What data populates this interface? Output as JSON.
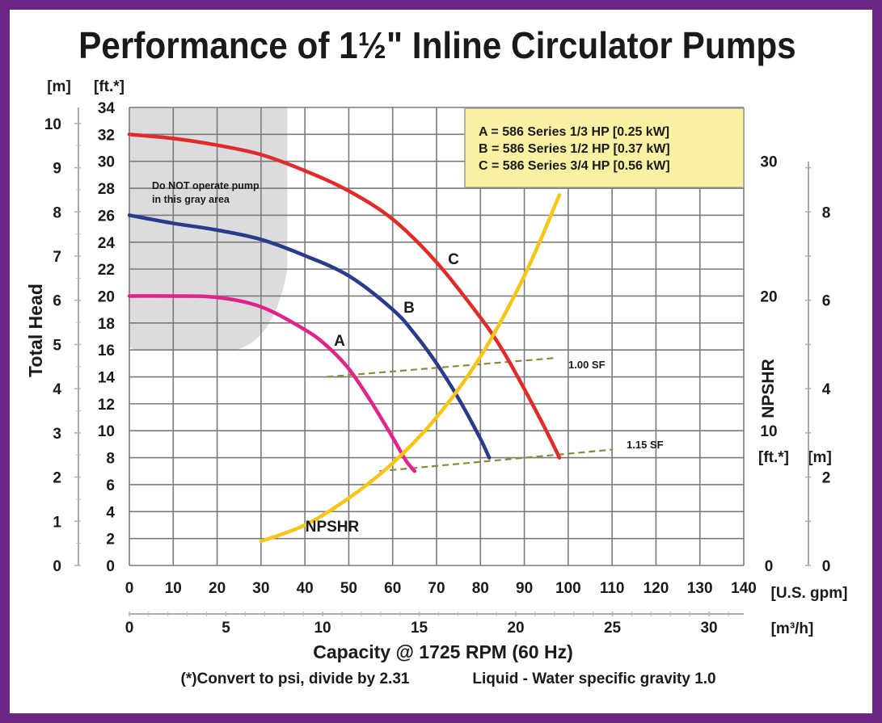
{
  "chart_data": {
    "type": "line",
    "title": "Performance of 1½\" Inline Circulator Pumps",
    "xlabel": "Capacity @ 1725 RPM (60 Hz)",
    "ylabel": "Total Head",
    "x_unit_primary": "[U.S. gpm]",
    "x_unit_secondary": "[m³/h]",
    "y_unit_left_outer": "[m]",
    "y_unit_left_inner": "[ft.*]",
    "xlim": [
      0,
      140
    ],
    "ylim": [
      0,
      34
    ],
    "grid": true,
    "x_ticks": [
      "0",
      "10",
      "20",
      "30",
      "40",
      "50",
      "60",
      "70",
      "80",
      "90",
      "100",
      "110",
      "120",
      "130",
      "140"
    ],
    "x2_ticks": [
      "0",
      "5",
      "10",
      "15",
      "20",
      "25",
      "30"
    ],
    "y_ft_ticks": [
      "0",
      "2",
      "4",
      "6",
      "8",
      "10",
      "12",
      "14",
      "16",
      "18",
      "20",
      "22",
      "24",
      "26",
      "28",
      "30",
      "32",
      "34"
    ],
    "y_m_ticks": [
      "0",
      "1",
      "2",
      "3",
      "4",
      "5",
      "6",
      "7",
      "8",
      "9",
      "10"
    ],
    "series": [
      {
        "name": "A",
        "color": "#e0248a",
        "x": [
          0,
          10,
          20,
          30,
          40,
          45,
          50,
          55,
          60,
          63,
          65
        ],
        "y": [
          20,
          20,
          19.9,
          19.2,
          17.5,
          16.3,
          14.6,
          12.2,
          9.5,
          7.8,
          7
        ]
      },
      {
        "name": "B",
        "color": "#2b3a8a",
        "x": [
          0,
          10,
          20,
          30,
          40,
          50,
          60,
          65,
          70,
          75,
          80,
          82
        ],
        "y": [
          26,
          25.4,
          24.9,
          24.2,
          23,
          21.5,
          19,
          17.2,
          15,
          12.4,
          9.4,
          8
        ]
      },
      {
        "name": "C",
        "color": "#e12b2b",
        "x": [
          0,
          10,
          20,
          30,
          40,
          50,
          60,
          70,
          80,
          85,
          90,
          95,
          98
        ],
        "y": [
          32,
          31.7,
          31.2,
          30.5,
          29.3,
          27.8,
          25.7,
          22.5,
          18.4,
          16,
          13.1,
          10,
          8
        ]
      },
      {
        "name": "NPSHR",
        "color": "#f5c518",
        "x": [
          30,
          40,
          50,
          60,
          70,
          80,
          90,
          98
        ],
        "y": [
          1.8,
          3,
          5,
          7.6,
          11,
          15.5,
          21.5,
          27.5
        ],
        "unit": "ft"
      }
    ],
    "npshr_axis": {
      "label": "NPSHR",
      "ft_unit": "[ft.*]",
      "m_unit": "[m]",
      "ft_ticks": [
        "0",
        "10",
        "20",
        "30"
      ],
      "m_ticks": [
        "0",
        "2",
        "4",
        "6",
        "8"
      ]
    },
    "sf_lines": [
      {
        "label": "1.00 SF",
        "x": [
          45,
          97
        ],
        "y": [
          14,
          15.4
        ]
      },
      {
        "label": "1.15 SF",
        "x": [
          57,
          110
        ],
        "y": [
          7,
          8.6
        ]
      }
    ],
    "legend": {
      "position": "top-right",
      "lines": [
        "A = 586 Series 1/3 HP [0.25 kW]",
        "B = 586 Series 1/2 HP [0.37 kW]",
        "C = 586 Series 3/4 HP [0.56 kW]"
      ]
    },
    "gray_area_note": "Do NOT operate pump in this gray area",
    "footnote_left": "(*)Convert to psi, divide by 2.31",
    "footnote_right": "Liquid - Water specific gravity 1.0"
  },
  "colors": {
    "frame": "#6a2585",
    "grid": "#7a7a7a",
    "gray_area": "#dcdcdf",
    "legend_bg": "#fbf1a3",
    "legend_border": "#999999",
    "sf_line": "#8a8a3a"
  }
}
